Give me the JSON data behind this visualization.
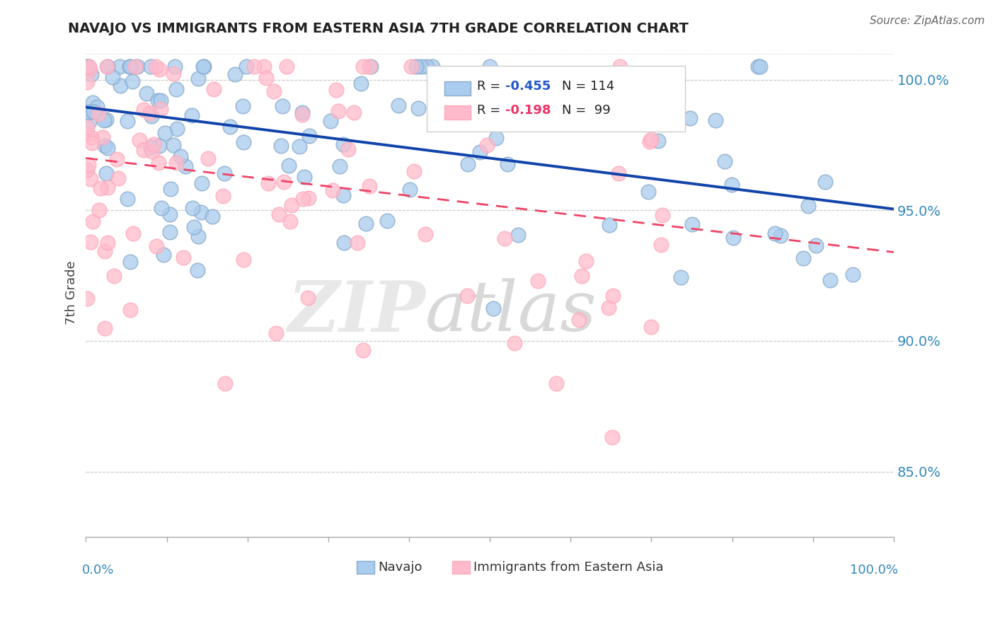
{
  "title": "NAVAJO VS IMMIGRANTS FROM EASTERN ASIA 7TH GRADE CORRELATION CHART",
  "source_text": "Source: ZipAtlas.com",
  "ylabel": "7th Grade",
  "blue_color_fill": "#AACCEE",
  "blue_color_edge": "#88AACC",
  "pink_color_fill": "#FFBBCC",
  "pink_color_edge": "#FFAABB",
  "trendline_blue_color": "#1144AA",
  "trendline_pink_color": "#EE4466",
  "blue_trend_y0": 0.9895,
  "blue_trend_y1": 0.9505,
  "pink_trend_y0": 0.97,
  "pink_trend_y1": 0.934,
  "xlim": [
    0.0,
    1.0
  ],
  "ylim": [
    0.825,
    1.012
  ],
  "ytick_vals": [
    0.85,
    0.9,
    0.95,
    1.0
  ],
  "ytick_labels": [
    "85.0%",
    "90.0%",
    "95.0%",
    "100.0%"
  ],
  "watermark_zip": "ZIP",
  "watermark_atlas": "atlas",
  "bg_color": "#FFFFFF",
  "legend_r_blue": "-0.455",
  "legend_n_blue": "114",
  "legend_r_pink": "-0.198",
  "legend_n_pink": "99"
}
